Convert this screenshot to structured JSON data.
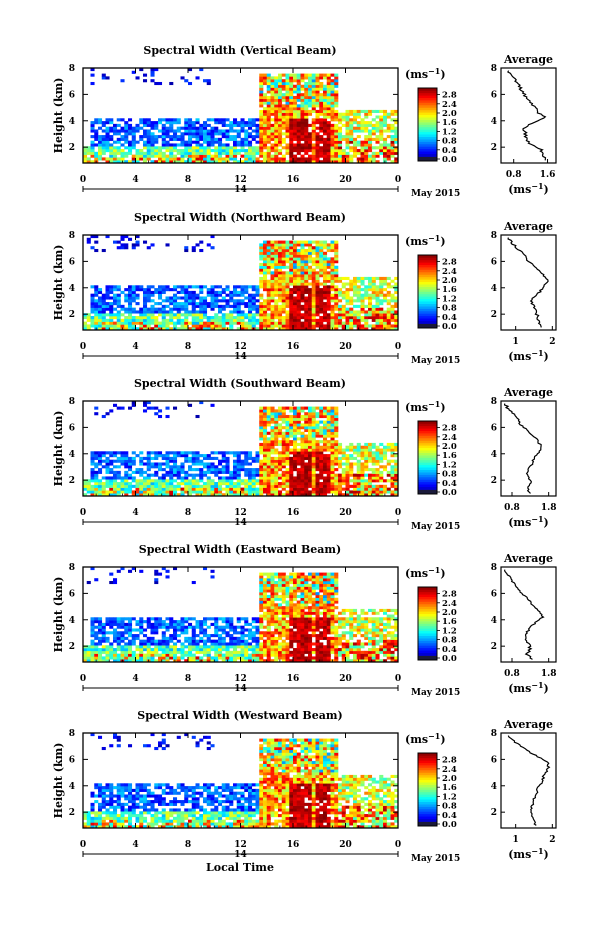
{
  "figure": {
    "month_label": "May 2015",
    "date_label": "14",
    "xlabel": "Local Time",
    "unit_label": "(ms",
    "unit_exponent": "−1",
    "unit_close": ")",
    "average_title": "Average"
  },
  "chart_data": [
    {
      "type": "heatmap",
      "title": "Spectral Width (Vertical Beam)",
      "beam": "vertical",
      "xlabel": "",
      "ylabel": "Height (km)",
      "x_ticks": [
        "0",
        "4",
        "8",
        "12",
        "16",
        "20",
        "0"
      ],
      "x_range_hours": [
        0,
        24
      ],
      "y_ticks": [
        "2",
        "4",
        "6",
        "8"
      ],
      "y_range_km": [
        0.8,
        8.0
      ],
      "colorbar_ticks": [
        "0.0",
        "0.4",
        "0.8",
        "1.2",
        "1.6",
        "2.0",
        "2.4",
        "2.8"
      ],
      "colorbar_range": [
        0.0,
        3.0
      ],
      "average_profile": {
        "xlabel": "(ms",
        "x_ticks": [
          "0.8",
          "1.6"
        ],
        "x_range": [
          0.5,
          1.8
        ],
        "y_range_km": [
          0.8,
          8.0
        ],
        "y_ticks": [
          "2",
          "4",
          "6",
          "8"
        ],
        "height_km": [
          1.0,
          1.4,
          1.8,
          2.2,
          2.6,
          3.0,
          3.4,
          3.8,
          4.2,
          4.6,
          5.0,
          5.4,
          5.8,
          6.2,
          6.6,
          7.0,
          7.4,
          7.8
        ],
        "width": [
          1.55,
          1.5,
          1.45,
          1.2,
          1.1,
          1.08,
          1.05,
          1.2,
          1.55,
          1.4,
          1.3,
          1.2,
          1.1,
          1.0,
          0.95,
          0.85,
          0.75,
          0.68
        ]
      }
    },
    {
      "type": "heatmap",
      "title": "Spectral Width (Northward Beam)",
      "beam": "northward",
      "xlabel": "",
      "ylabel": "Height (km)",
      "x_ticks": [
        "0",
        "4",
        "8",
        "12",
        "16",
        "20",
        "0"
      ],
      "x_range_hours": [
        0,
        24
      ],
      "y_ticks": [
        "2",
        "4",
        "6",
        "8"
      ],
      "y_range_km": [
        0.8,
        8.0
      ],
      "colorbar_ticks": [
        "0.0",
        "0.4",
        "0.8",
        "1.2",
        "1.6",
        "2.0",
        "2.4",
        "2.8"
      ],
      "colorbar_range": [
        0.0,
        3.0
      ],
      "average_profile": {
        "xlabel": "(ms",
        "x_ticks": [
          "1",
          "2"
        ],
        "x_range": [
          0.6,
          2.1
        ],
        "y_range_km": [
          0.8,
          8.0
        ],
        "y_ticks": [
          "2",
          "4",
          "6",
          "8"
        ],
        "height_km": [
          1.0,
          1.4,
          1.8,
          2.2,
          2.6,
          3.0,
          3.4,
          3.8,
          4.2,
          4.6,
          5.0,
          5.4,
          5.8,
          6.2,
          6.6,
          7.0,
          7.4,
          7.8
        ],
        "width": [
          1.7,
          1.65,
          1.6,
          1.55,
          1.5,
          1.4,
          1.55,
          1.7,
          1.8,
          1.9,
          1.75,
          1.6,
          1.45,
          1.3,
          1.2,
          1.05,
          0.9,
          0.8
        ]
      }
    },
    {
      "type": "heatmap",
      "title": "Spectral Width (Southward Beam)",
      "beam": "southward",
      "xlabel": "",
      "ylabel": "Height (km)",
      "x_ticks": [
        "0",
        "4",
        "8",
        "12",
        "16",
        "20",
        "0"
      ],
      "x_range_hours": [
        0,
        24
      ],
      "y_ticks": [
        "2",
        "4",
        "6",
        "8"
      ],
      "y_range_km": [
        0.8,
        8.0
      ],
      "colorbar_ticks": [
        "0.0",
        "0.4",
        "0.8",
        "1.2",
        "1.6",
        "2.0",
        "2.4",
        "2.8"
      ],
      "colorbar_range": [
        0.0,
        3.0
      ],
      "average_profile": {
        "xlabel": "(ms",
        "x_ticks": [
          "0.8",
          "1.8"
        ],
        "x_range": [
          0.5,
          2.0
        ],
        "y_range_km": [
          0.8,
          8.0
        ],
        "y_ticks": [
          "2",
          "4",
          "6",
          "8"
        ],
        "height_km": [
          1.0,
          1.4,
          1.8,
          2.2,
          2.6,
          3.0,
          3.4,
          3.8,
          4.2,
          4.6,
          5.0,
          5.4,
          5.8,
          6.2,
          6.6,
          7.0,
          7.4,
          7.8
        ],
        "width": [
          1.3,
          1.2,
          1.35,
          1.25,
          1.2,
          1.3,
          1.35,
          1.45,
          1.55,
          1.6,
          1.5,
          1.35,
          1.2,
          1.05,
          0.95,
          0.85,
          0.7,
          0.6
        ]
      }
    },
    {
      "type": "heatmap",
      "title": "Spectral Width (Eastward Beam)",
      "beam": "eastward",
      "xlabel": "",
      "ylabel": "Height (km)",
      "x_ticks": [
        "0",
        "4",
        "8",
        "12",
        "16",
        "20",
        "0"
      ],
      "x_range_hours": [
        0,
        24
      ],
      "y_ticks": [
        "2",
        "4",
        "6",
        "8"
      ],
      "y_range_km": [
        0.8,
        8.0
      ],
      "colorbar_ticks": [
        "0.0",
        "0.4",
        "0.8",
        "1.2",
        "1.6",
        "2.0",
        "2.4",
        "2.8"
      ],
      "colorbar_range": [
        0.0,
        3.0
      ],
      "average_profile": {
        "xlabel": "(ms",
        "x_ticks": [
          "0.8",
          "1.8"
        ],
        "x_range": [
          0.5,
          2.0
        ],
        "y_range_km": [
          0.8,
          8.0
        ],
        "y_ticks": [
          "2",
          "4",
          "6",
          "8"
        ],
        "height_km": [
          1.0,
          1.4,
          1.8,
          2.2,
          2.6,
          3.0,
          3.4,
          3.8,
          4.2,
          4.6,
          5.0,
          5.4,
          5.8,
          6.2,
          6.6,
          7.0,
          7.4,
          7.8
        ],
        "width": [
          1.35,
          1.2,
          1.3,
          1.25,
          1.15,
          1.2,
          1.3,
          1.45,
          1.65,
          1.55,
          1.4,
          1.3,
          1.15,
          1.0,
          0.9,
          0.8,
          0.7,
          0.6
        ]
      }
    },
    {
      "type": "heatmap",
      "title": "Spectral Width (Westward Beam)",
      "beam": "westward",
      "xlabel": "Local Time",
      "ylabel": "Height (km)",
      "x_ticks": [
        "0",
        "4",
        "8",
        "12",
        "16",
        "20",
        "0"
      ],
      "x_range_hours": [
        0,
        24
      ],
      "y_ticks": [
        "2",
        "4",
        "6",
        "8"
      ],
      "y_range_km": [
        0.8,
        8.0
      ],
      "colorbar_ticks": [
        "0.0",
        "0.4",
        "0.8",
        "1.2",
        "1.6",
        "2.0",
        "2.4",
        "2.8"
      ],
      "colorbar_range": [
        0.0,
        3.0
      ],
      "average_profile": {
        "xlabel": "(ms",
        "x_ticks": [
          "1",
          "2"
        ],
        "x_range": [
          0.6,
          2.1
        ],
        "y_range_km": [
          0.8,
          8.0
        ],
        "y_ticks": [
          "2",
          "4",
          "6",
          "8"
        ],
        "height_km": [
          1.0,
          1.4,
          1.8,
          2.2,
          2.6,
          3.0,
          3.4,
          3.8,
          4.2,
          4.6,
          5.0,
          5.4,
          5.8,
          6.2,
          6.6,
          7.0,
          7.4,
          7.8
        ],
        "width": [
          1.55,
          1.5,
          1.45,
          1.4,
          1.45,
          1.5,
          1.55,
          1.6,
          1.7,
          1.75,
          1.8,
          1.9,
          1.85,
          1.6,
          1.35,
          1.15,
          0.95,
          0.8
        ]
      }
    }
  ]
}
